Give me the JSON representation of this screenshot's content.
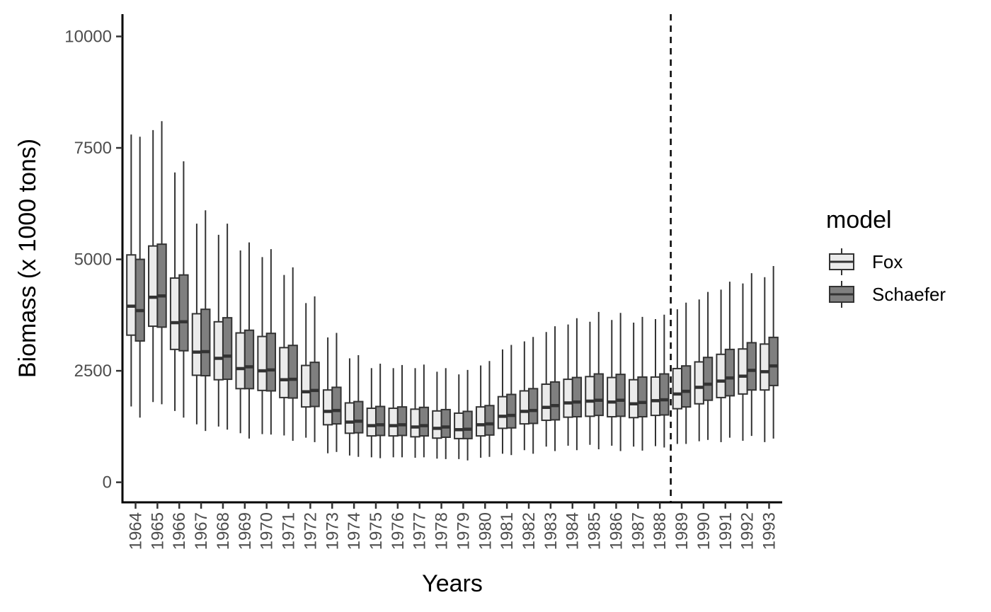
{
  "chart_data": {
    "type": "boxplot",
    "xlabel": "Years",
    "ylabel": "Biomass (x 1000 tons)",
    "ylim": [
      -450,
      10500
    ],
    "yticks": [
      0,
      2500,
      5000,
      7500,
      10000
    ],
    "y_tick_labels": [
      "0",
      "2500",
      "5000",
      "7500",
      "10000"
    ],
    "categories": [
      "1964",
      "1965",
      "1966",
      "1967",
      "1968",
      "1969",
      "1970",
      "1971",
      "1972",
      "1973",
      "1974",
      "1975",
      "1976",
      "1977",
      "1978",
      "1979",
      "1980",
      "1981",
      "1982",
      "1983",
      "1984",
      "1985",
      "1986",
      "1987",
      "1988",
      "1989",
      "1990",
      "1991",
      "1992",
      "1993"
    ],
    "vline_after_category": "1988",
    "vline_style": "dashed",
    "grid": false,
    "legend": {
      "title": "model",
      "position": "right"
    },
    "series": [
      {
        "name": "Fox",
        "color": "#ebebeb",
        "boxes": [
          [
            1700,
            3300,
            3950,
            5100,
            7800
          ],
          [
            1800,
            3500,
            4150,
            5300,
            7900
          ],
          [
            1600,
            2980,
            3580,
            4580,
            6950
          ],
          [
            1300,
            2400,
            2920,
            3780,
            5800
          ],
          [
            1250,
            2300,
            2780,
            3600,
            5550
          ],
          [
            1100,
            2100,
            2550,
            3350,
            5200
          ],
          [
            1080,
            2060,
            2500,
            3270,
            5050
          ],
          [
            1050,
            1900,
            2300,
            3020,
            4650
          ],
          [
            1000,
            1690,
            2030,
            2620,
            4020
          ],
          [
            650,
            1290,
            1590,
            2070,
            3250
          ],
          [
            600,
            1100,
            1350,
            1780,
            2780
          ],
          [
            560,
            1040,
            1270,
            1660,
            2560
          ],
          [
            560,
            1040,
            1270,
            1660,
            2560
          ],
          [
            550,
            1020,
            1240,
            1640,
            2560
          ],
          [
            530,
            990,
            1210,
            1600,
            2480
          ],
          [
            520,
            980,
            1180,
            1550,
            2420
          ],
          [
            550,
            1040,
            1290,
            1690,
            2620
          ],
          [
            640,
            1210,
            1480,
            1920,
            2980
          ],
          [
            720,
            1310,
            1590,
            2050,
            3160
          ],
          [
            800,
            1390,
            1680,
            2200,
            3370
          ],
          [
            820,
            1460,
            1780,
            2310,
            3540
          ],
          [
            840,
            1480,
            1820,
            2370,
            3600
          ],
          [
            820,
            1470,
            1800,
            2350,
            3640
          ],
          [
            800,
            1450,
            1760,
            2300,
            3580
          ],
          [
            810,
            1500,
            1830,
            2360,
            3660
          ],
          [
            860,
            1650,
            1980,
            2550,
            3880
          ],
          [
            920,
            1760,
            2130,
            2700,
            4100
          ],
          [
            900,
            1900,
            2270,
            2870,
            4320
          ],
          [
            930,
            1980,
            2380,
            2990,
            4460
          ],
          [
            900,
            2070,
            2480,
            3100,
            4600
          ]
        ]
      },
      {
        "name": "Schaefer",
        "color": "#7f7f7f",
        "boxes": [
          [
            1450,
            3170,
            3850,
            5000,
            7750
          ],
          [
            1750,
            3480,
            4180,
            5340,
            8100
          ],
          [
            1450,
            2950,
            3600,
            4650,
            7200
          ],
          [
            1150,
            2390,
            2930,
            3880,
            6100
          ],
          [
            1180,
            2310,
            2830,
            3690,
            5800
          ],
          [
            980,
            2100,
            2590,
            3410,
            5380
          ],
          [
            1070,
            2050,
            2520,
            3340,
            5230
          ],
          [
            930,
            1890,
            2310,
            3070,
            4820
          ],
          [
            900,
            1700,
            2060,
            2690,
            4170
          ],
          [
            680,
            1310,
            1610,
            2130,
            3350
          ],
          [
            570,
            1110,
            1370,
            1810,
            2850
          ],
          [
            540,
            1050,
            1290,
            1700,
            2660
          ],
          [
            560,
            1050,
            1290,
            1690,
            2630
          ],
          [
            560,
            1040,
            1270,
            1680,
            2640
          ],
          [
            520,
            1010,
            1240,
            1630,
            2560
          ],
          [
            490,
            980,
            1190,
            1590,
            2520
          ],
          [
            570,
            1060,
            1310,
            1720,
            2720
          ],
          [
            610,
            1220,
            1500,
            1970,
            3080
          ],
          [
            640,
            1320,
            1610,
            2100,
            3260
          ],
          [
            700,
            1400,
            1720,
            2250,
            3500
          ],
          [
            720,
            1470,
            1800,
            2350,
            3680
          ],
          [
            740,
            1500,
            1840,
            2430,
            3820
          ],
          [
            700,
            1480,
            1840,
            2420,
            3800
          ],
          [
            710,
            1470,
            1790,
            2360,
            3710
          ],
          [
            780,
            1510,
            1850,
            2430,
            3760
          ],
          [
            860,
            1690,
            2040,
            2610,
            4030
          ],
          [
            950,
            1840,
            2200,
            2800,
            4270
          ],
          [
            1000,
            1940,
            2340,
            2980,
            4500
          ],
          [
            1040,
            2070,
            2510,
            3130,
            4690
          ],
          [
            980,
            2170,
            2610,
            3250,
            4850
          ]
        ]
      }
    ]
  }
}
